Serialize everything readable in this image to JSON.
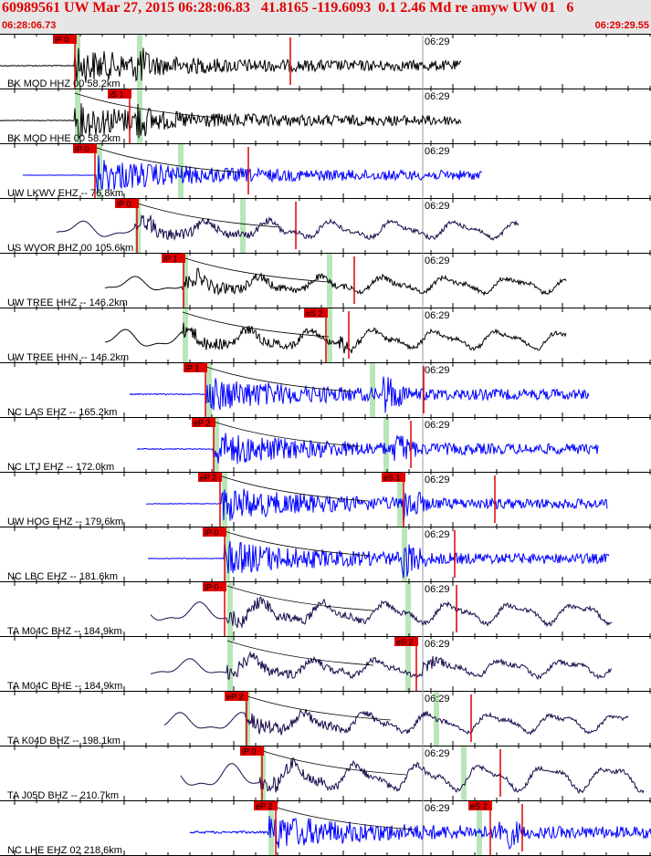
{
  "header": {
    "title": "60989561 UW Mar 27, 2015 06:28:06.83   41.8165 -119.6093  0.1 2.46 Md re amyw UW 01   6",
    "start_time": "06:28:06.73",
    "end_time": "06:29:29.55"
  },
  "minute_label": "06:29",
  "colors": {
    "header_text": "#e00000",
    "pick": "#e00000",
    "window": "#b9e6b9",
    "blue_trace": "#0000ff",
    "dark_trace": "#1a0a4a",
    "black_trace": "#000000"
  },
  "traces": [
    {
      "label": "BK MOD HHZ 00 58.2km",
      "color": "#000000",
      "start": 0,
      "end": 505,
      "amp": 0.15,
      "onset": 82,
      "pulse": 148,
      "pulse_amp": 1.0,
      "smooth": false,
      "picks": [
        {
          "text": "iP 0",
          "x": 58
        }
      ],
      "windows": [
        82,
        150
      ],
      "ticks": [
        318
      ]
    },
    {
      "label": "BK MOD HHE 00 58.2km",
      "color": "#000000",
      "start": 0,
      "end": 505,
      "amp": 0.1,
      "onset": 82,
      "pulse": 148,
      "pulse_amp": 1.0,
      "smooth": false,
      "picks": [
        {
          "text": "iS 1",
          "x": 118
        }
      ],
      "windows": [
        82,
        150
      ],
      "ticks": []
    },
    {
      "label": "UW LKWV EHZ -- 76.8km",
      "color": "#0000ff",
      "start": 25,
      "end": 528,
      "amp": 0.05,
      "onset": 106,
      "pulse": 106,
      "pulse_amp": 1.0,
      "smooth": false,
      "picks": [
        {
          "text": "iP 0",
          "x": 80
        }
      ],
      "windows": [
        106,
        195
      ],
      "ticks": [
        272
      ]
    },
    {
      "label": "US WVOR BHZ 00 105.6km",
      "color": "#1a0a4a",
      "start": 62,
      "end": 568,
      "amp": 0.5,
      "onset": 148,
      "pulse": 160,
      "pulse_amp": 1.0,
      "smooth": true,
      "picks": [
        {
          "text": "iP 0",
          "x": 126
        }
      ],
      "windows": [
        148,
        263
      ],
      "ticks": [
        324
      ]
    },
    {
      "label": "UW TREE HHZ -- 146.2km",
      "color": "#000000",
      "start": 115,
      "end": 620,
      "amp": 0.45,
      "onset": 200,
      "pulse": 210,
      "pulse_amp": 1.0,
      "smooth": true,
      "picks": [
        {
          "text": "iP 1",
          "x": 177
        }
      ],
      "windows": [
        200,
        358
      ],
      "ticks": [
        388
      ]
    },
    {
      "label": "UW TREE HHN -- 146.2km",
      "color": "#000000",
      "start": 115,
      "end": 620,
      "amp": 0.55,
      "onset": 200,
      "pulse": 372,
      "pulse_amp": 1.0,
      "smooth": true,
      "picks": [
        {
          "text": "eS 2",
          "x": 333
        }
      ],
      "windows": [
        200,
        358
      ],
      "ticks": [
        382
      ]
    },
    {
      "label": "NC LAS EHZ -- 165.2km",
      "color": "#0000ff",
      "start": 142,
      "end": 645,
      "amp": 0.15,
      "onset": 226,
      "pulse": 420,
      "pulse_amp": 1.0,
      "smooth": false,
      "picks": [
        {
          "text": "iP 1",
          "x": 201
        }
      ],
      "windows": [
        226,
        405
      ],
      "ticks": [
        464
      ]
    },
    {
      "label": "NC LTJ EHZ -- 172.0km",
      "color": "#0000ff",
      "start": 150,
      "end": 655,
      "amp": 0.15,
      "onset": 234,
      "pulse": 432,
      "pulse_amp": 0.8,
      "smooth": false,
      "picks": [
        {
          "text": "eP 2",
          "x": 210
        }
      ],
      "windows": [
        234,
        420
      ],
      "ticks": [
        450
      ]
    },
    {
      "label": "UW HOG EHZ -- 179.6km",
      "color": "#0000ff",
      "start": 160,
      "end": 665,
      "amp": 0.08,
      "onset": 243,
      "pulse": 440,
      "pulse_amp": 1.0,
      "smooth": false,
      "picks": [
        {
          "text": "eP 2",
          "x": 217
        },
        {
          "text": "eS 1",
          "x": 418
        }
      ],
      "windows": [
        243,
        435
      ],
      "ticks": [
        542
      ]
    },
    {
      "label": "NC LBC EHZ -- 181.6km",
      "color": "#0000ff",
      "start": 162,
      "end": 667,
      "amp": 0.1,
      "onset": 246,
      "pulse": 440,
      "pulse_amp": 1.0,
      "smooth": false,
      "picks": [
        {
          "text": "iP 0",
          "x": 222
        }
      ],
      "windows": [
        246,
        440
      ],
      "ticks": [
        498
      ]
    },
    {
      "label": "TA M04C BHZ -- 184.9km",
      "color": "#1a0a4a",
      "start": 165,
      "end": 670,
      "amp": 0.6,
      "onset": 249,
      "pulse": 260,
      "pulse_amp": 1.0,
      "smooth": true,
      "picks": [
        {
          "text": "iP 0",
          "x": 222
        }
      ],
      "windows": [
        249,
        444
      ],
      "ticks": [
        500
      ]
    },
    {
      "label": "TA M04C BHE -- 184.9km",
      "color": "#1a0a4a",
      "start": 165,
      "end": 670,
      "amp": 0.5,
      "onset": 249,
      "pulse": 462,
      "pulse_amp": 1.0,
      "smooth": true,
      "picks": [
        {
          "text": "eS 2",
          "x": 432
        }
      ],
      "windows": [
        249,
        444
      ],
      "ticks": []
    },
    {
      "label": "TA K04D BHZ -- 198.1km",
      "color": "#1a0a4a",
      "start": 180,
      "end": 688,
      "amp": 0.55,
      "onset": 268,
      "pulse": 280,
      "pulse_amp": 1.0,
      "smooth": true,
      "picks": [
        {
          "text": "eP 2",
          "x": 246
        }
      ],
      "windows": [
        268,
        475
      ],
      "ticks": [
        516
      ]
    },
    {
      "label": "TA J05D BHZ -- 210.7km",
      "color": "#1a0a4a",
      "start": 198,
      "end": 705,
      "amp": 0.75,
      "onset": 285,
      "pulse": 300,
      "pulse_amp": 0.9,
      "smooth": true,
      "picks": [
        {
          "text": "iP 0",
          "x": 263
        }
      ],
      "windows": [
        285,
        505
      ],
      "ticks": [
        548
      ]
    },
    {
      "label": "NC LHE EHZ 02 218.6km",
      "color": "#0000ff",
      "start": 208,
      "end": 713,
      "amp": 0.35,
      "onset": 294,
      "pulse": 545,
      "pulse_amp": 1.0,
      "smooth": false,
      "picks": [
        {
          "text": "eP 2",
          "x": 278
        },
        {
          "text": "eS 2",
          "x": 513
        }
      ],
      "windows": [
        294,
        522
      ],
      "ticks": [
        572
      ]
    }
  ]
}
